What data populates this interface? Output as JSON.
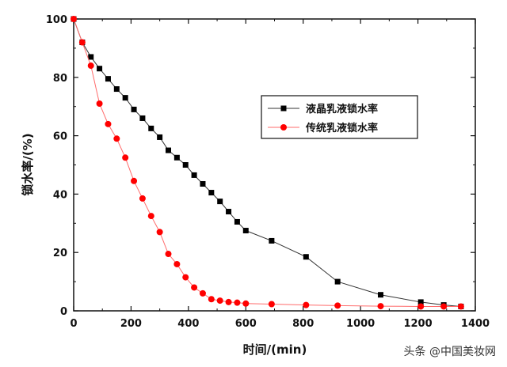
{
  "chart_data": {
    "type": "line",
    "title": "",
    "xlabel": "时间/(min)",
    "ylabel": "锁水率/(%)",
    "xlim": [
      0,
      1400
    ],
    "ylim": [
      0,
      100
    ],
    "xticks": [
      "0",
      "200",
      "400",
      "600",
      "800",
      "1000",
      "1200",
      "1400"
    ],
    "yticks": [
      "0",
      "20",
      "40",
      "60",
      "80",
      "100"
    ],
    "legend_position": "upper-right",
    "grid": false,
    "series": [
      {
        "name": "液晶乳液锁水率",
        "color": "#000000",
        "marker": "square",
        "x": [
          0,
          30,
          60,
          90,
          120,
          150,
          180,
          210,
          240,
          270,
          300,
          330,
          360,
          390,
          420,
          450,
          480,
          510,
          540,
          570,
          600,
          690,
          810,
          920,
          1070,
          1210,
          1290,
          1350
        ],
        "y": [
          100,
          92,
          87,
          83,
          79.5,
          76,
          73,
          69,
          66,
          62.5,
          59.5,
          55,
          52.5,
          50,
          46.5,
          43.5,
          40.5,
          37.5,
          34,
          30.5,
          27.5,
          24,
          18.5,
          10,
          5.5,
          3,
          2,
          1.5
        ]
      },
      {
        "name": "传统乳液锁水率",
        "color": "#ff0000",
        "marker": "circle",
        "x": [
          0,
          30,
          60,
          90,
          120,
          150,
          180,
          210,
          240,
          270,
          300,
          330,
          360,
          390,
          420,
          450,
          480,
          510,
          540,
          570,
          600,
          690,
          810,
          920,
          1070,
          1210,
          1290,
          1350
        ],
        "y": [
          100,
          92,
          84,
          71,
          64,
          59,
          52.5,
          44.5,
          38.5,
          32.5,
          27,
          19.5,
          16,
          11.5,
          8,
          6,
          4,
          3.5,
          3,
          2.8,
          2.5,
          2.3,
          2,
          1.8,
          1.6,
          1.5,
          1.5,
          1.5
        ]
      }
    ]
  },
  "watermark": "头条 @中国美妆网"
}
